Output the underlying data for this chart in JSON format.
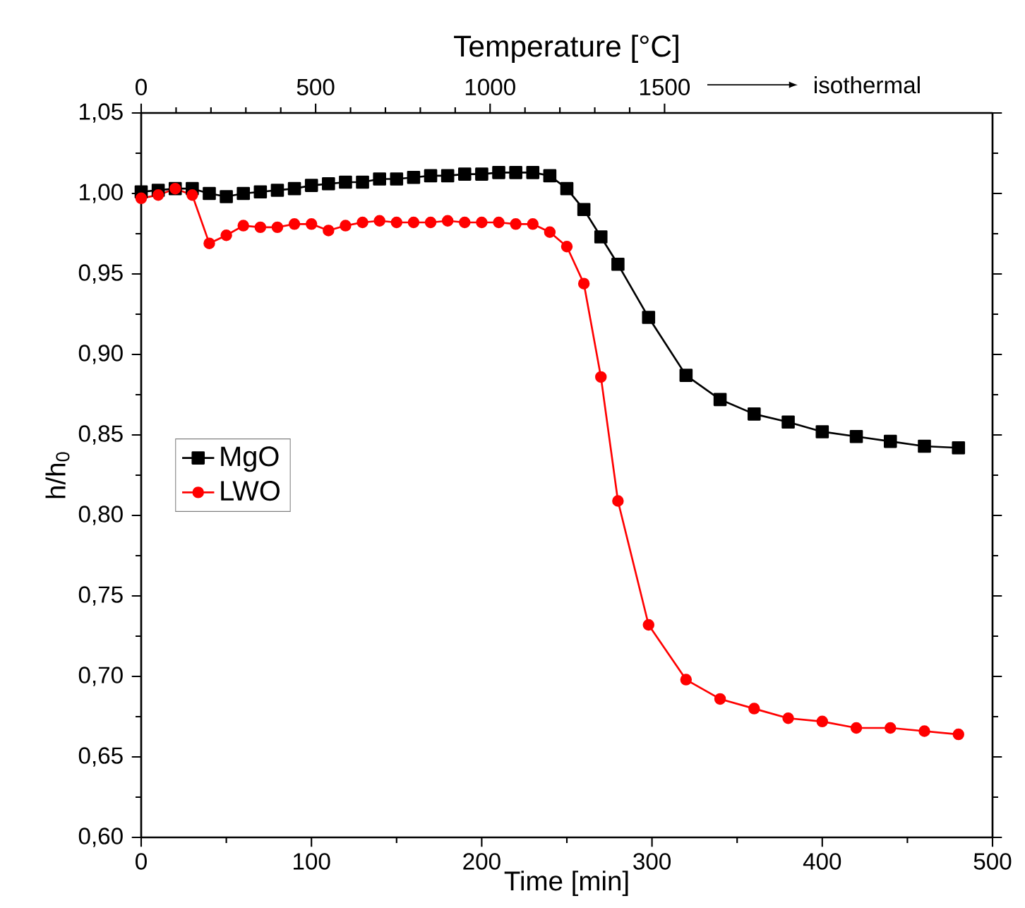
{
  "chart_data": {
    "type": "line",
    "xlabel": "Time [min]",
    "ylabel": "h/h$_{0}$",
    "x2label": "Temperature [°C]",
    "x": [
      0,
      10,
      20,
      30,
      40,
      50,
      60,
      70,
      80,
      90,
      100,
      110,
      120,
      130,
      140,
      150,
      160,
      170,
      180,
      190,
      200,
      210,
      220,
      230,
      240,
      250,
      260,
      270,
      280,
      298,
      320,
      340,
      360,
      380,
      400,
      420,
      440,
      460,
      480
    ],
    "series": [
      {
        "name": "MgO",
        "color": "#000000",
        "marker": "square",
        "values": [
          1.001,
          1.002,
          1.003,
          1.003,
          1.0,
          0.998,
          1.0,
          1.001,
          1.002,
          1.003,
          1.005,
          1.006,
          1.007,
          1.007,
          1.009,
          1.009,
          1.01,
          1.011,
          1.011,
          1.012,
          1.012,
          1.013,
          1.013,
          1.013,
          1.011,
          1.003,
          0.99,
          0.973,
          0.956,
          0.923,
          0.887,
          0.872,
          0.863,
          0.858,
          0.852,
          0.849,
          0.846,
          0.843,
          0.842
        ]
      },
      {
        "name": "LWO",
        "color": "#ff0000",
        "marker": "circle",
        "values": [
          0.997,
          0.999,
          1.003,
          0.999,
          0.969,
          0.974,
          0.98,
          0.979,
          0.979,
          0.981,
          0.981,
          0.977,
          0.98,
          0.982,
          0.983,
          0.982,
          0.982,
          0.982,
          0.983,
          0.982,
          0.982,
          0.982,
          0.981,
          0.981,
          0.976,
          0.967,
          0.944,
          0.886,
          0.809,
          0.732,
          0.698,
          0.686,
          0.68,
          0.674,
          0.672,
          0.668,
          0.668,
          0.666,
          0.664
        ]
      }
    ],
    "xlim": [
      0,
      500
    ],
    "xticks": [
      0,
      100,
      200,
      300,
      400,
      500
    ],
    "x2lim": [
      0,
      2440
    ],
    "x2ticks": [
      0,
      500,
      1000,
      1500
    ],
    "ylim": [
      0.6,
      1.05
    ],
    "yticks": [
      {
        "value": 0.6,
        "label": "0,60"
      },
      {
        "value": 0.65,
        "label": "0,65"
      },
      {
        "value": 0.7,
        "label": "0,70"
      },
      {
        "value": 0.75,
        "label": "0,75"
      },
      {
        "value": 0.8,
        "label": "0,80"
      },
      {
        "value": 0.85,
        "label": "0,85"
      },
      {
        "value": 0.9,
        "label": "0,90"
      },
      {
        "value": 0.95,
        "label": "0,95"
      },
      {
        "value": 1.0,
        "label": "1,00"
      },
      {
        "value": 1.05,
        "label": "1,05"
      }
    ],
    "annotations": [
      "isothermal"
    ],
    "legend": "left",
    "grid": false,
    "line_style": "solid"
  }
}
